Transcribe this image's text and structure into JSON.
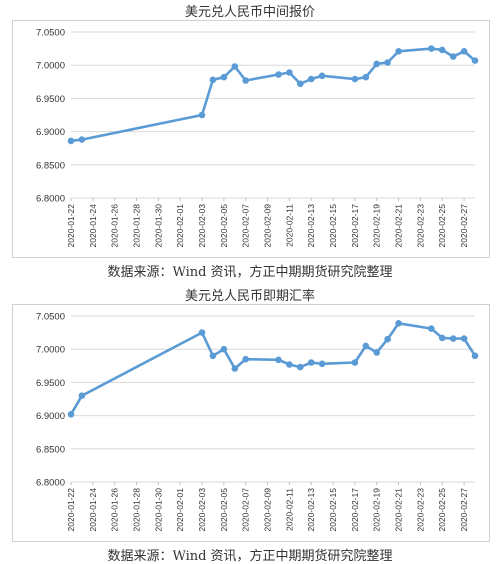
{
  "chart_data": [
    {
      "type": "line",
      "title": "美元兑人民币中间报价",
      "source": "数据来源：Wind 资讯，方正中期期货研究院整理",
      "xlabel": "",
      "ylabel": "",
      "ylim": [
        6.8,
        7.05
      ],
      "y_ticks": [
        "7.0500",
        "7.0000",
        "6.9500",
        "6.9000",
        "6.8500",
        "6.8000"
      ],
      "x_ticks": [
        "2020-01-22",
        "2020-01-24",
        "2020-01-26",
        "2020-01-28",
        "2020-01-30",
        "2020-02-01",
        "2020-02-03",
        "2020-02-05",
        "2020-02-07",
        "2020-02-09",
        "2020-02-11",
        "2020-02-13",
        "2020-02-15",
        "2020-02-17",
        "2020-02-19",
        "2020-02-21",
        "2020-02-23",
        "2020-02-25",
        "2020-02-27"
      ],
      "grid": true,
      "color": "#5b9bd5",
      "series": [
        {
          "x": [
            "2020-01-22",
            "2020-01-23",
            "2020-02-03",
            "2020-02-04",
            "2020-02-05",
            "2020-02-06",
            "2020-02-07",
            "2020-02-10",
            "2020-02-11",
            "2020-02-12",
            "2020-02-13",
            "2020-02-14",
            "2020-02-17",
            "2020-02-18",
            "2020-02-19",
            "2020-02-20",
            "2020-02-21",
            "2020-02-24",
            "2020-02-25",
            "2020-02-26",
            "2020-02-27",
            "2020-02-28"
          ],
          "values": [
            6.886,
            6.888,
            6.925,
            6.978,
            6.982,
            6.998,
            6.977,
            6.986,
            6.989,
            6.972,
            6.979,
            6.984,
            6.979,
            6.982,
            7.002,
            7.004,
            7.021,
            7.025,
            7.023,
            7.013,
            7.021,
            7.007
          ]
        }
      ]
    },
    {
      "type": "line",
      "title": "美元兑人民币即期汇率",
      "source": "数据来源：Wind 资讯，方正中期期货研究院整理",
      "xlabel": "",
      "ylabel": "",
      "ylim": [
        6.8,
        7.05
      ],
      "y_ticks": [
        "7.0500",
        "7.0000",
        "6.9500",
        "6.9000",
        "6.8500",
        "6.8000"
      ],
      "x_ticks": [
        "2020-01-22",
        "2020-01-24",
        "2020-01-26",
        "2020-01-28",
        "2020-01-30",
        "2020-02-01",
        "2020-02-03",
        "2020-02-05",
        "2020-02-07",
        "2020-02-09",
        "2020-02-11",
        "2020-02-13",
        "2020-02-15",
        "2020-02-17",
        "2020-02-19",
        "2020-02-21",
        "2020-02-23",
        "2020-02-25",
        "2020-02-27"
      ],
      "grid": true,
      "color": "#5b9bd5",
      "series": [
        {
          "x": [
            "2020-01-22",
            "2020-01-23",
            "2020-02-03",
            "2020-02-04",
            "2020-02-05",
            "2020-02-06",
            "2020-02-07",
            "2020-02-10",
            "2020-02-11",
            "2020-02-12",
            "2020-02-13",
            "2020-02-14",
            "2020-02-17",
            "2020-02-18",
            "2020-02-19",
            "2020-02-20",
            "2020-02-21",
            "2020-02-24",
            "2020-02-25",
            "2020-02-26",
            "2020-02-27",
            "2020-02-28"
          ],
          "values": [
            6.902,
            6.93,
            7.025,
            6.99,
            7.0,
            6.971,
            6.985,
            6.984,
            6.977,
            6.973,
            6.98,
            6.978,
            6.98,
            7.005,
            6.995,
            7.015,
            7.039,
            7.031,
            7.017,
            7.016,
            7.016,
            6.99
          ]
        }
      ]
    }
  ]
}
